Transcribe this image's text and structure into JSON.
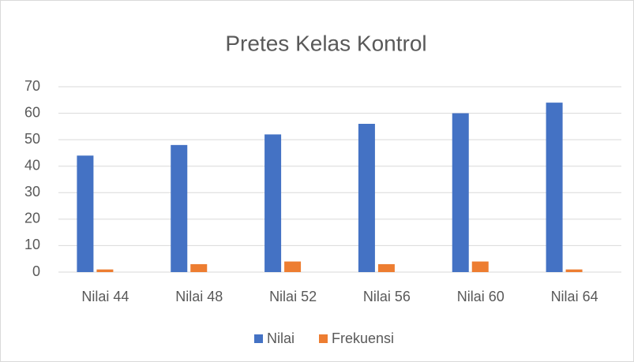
{
  "chart_data": {
    "type": "bar",
    "title": "Pretes Kelas Kontrol",
    "categories": [
      "Nilai 44",
      "Nilai 48",
      "Nilai 52",
      "Nilai 56",
      "Nilai 60",
      "Nilai 64"
    ],
    "series": [
      {
        "name": "Nilai",
        "color": "#4472c4",
        "values": [
          44,
          48,
          52,
          56,
          60,
          64
        ]
      },
      {
        "name": "Frekuensi",
        "color": "#ed7d31",
        "values": [
          1,
          3,
          4,
          3,
          4,
          1
        ]
      }
    ],
    "ylim": [
      0,
      70
    ],
    "yticks": [
      0,
      10,
      20,
      30,
      40,
      50,
      60,
      70
    ],
    "grid": true,
    "legend": "bottom"
  }
}
